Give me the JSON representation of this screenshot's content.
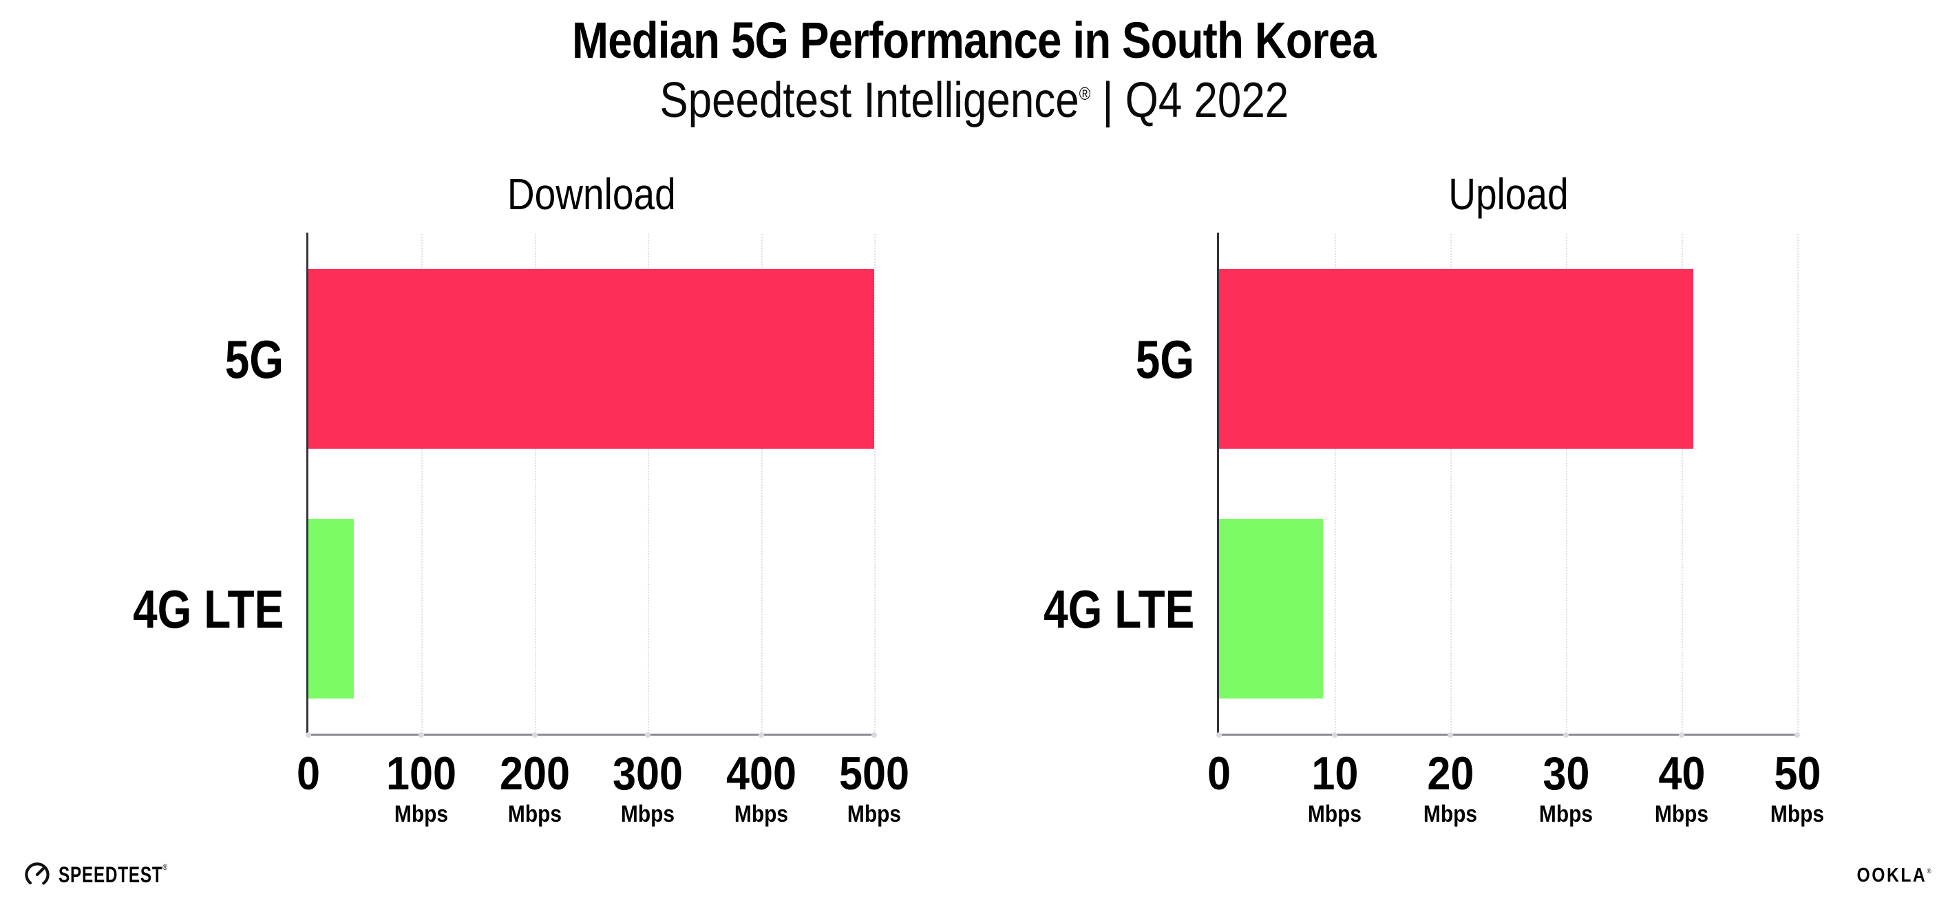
{
  "header": {
    "title": "Median 5G Performance in South Korea",
    "subtitle_brand": "Speedtest Intelligence",
    "subtitle_registered": "®",
    "subtitle_suffix": " | Q4 2022"
  },
  "chart_data": [
    {
      "type": "bar",
      "orientation": "horizontal",
      "title": "Download",
      "categories": [
        "5G",
        "4G LTE"
      ],
      "values": [
        500,
        40
      ],
      "unit": "Mbps",
      "xlim": [
        0,
        500
      ],
      "xticks": [
        0,
        100,
        200,
        300,
        400,
        500
      ],
      "bar_colors": [
        "#fd2e57",
        "#7dfb66"
      ],
      "grid": "vertical-dotted",
      "legend": "none"
    },
    {
      "type": "bar",
      "orientation": "horizontal",
      "title": "Upload",
      "categories": [
        "5G",
        "4G LTE"
      ],
      "values": [
        41,
        9
      ],
      "unit": "Mbps",
      "xlim": [
        0,
        50
      ],
      "xticks": [
        0,
        10,
        20,
        30,
        40,
        50
      ],
      "bar_colors": [
        "#fd2e57",
        "#7dfb66"
      ],
      "grid": "vertical-dotted",
      "legend": "none"
    }
  ],
  "footer": {
    "speedtest_logo": "SPEEDTEST",
    "speedtest_registered": "®",
    "ookla_logo": "OOKLA",
    "ookla_registered": "®"
  },
  "colors": {
    "bar_5g": "#fd2e57",
    "bar_4g_lte": "#7dfb66",
    "y_axis": "#33333a",
    "x_axis": "#8c8c94",
    "gridline": "#dfdfe8",
    "text": "#000000",
    "background": "#ffffff"
  }
}
